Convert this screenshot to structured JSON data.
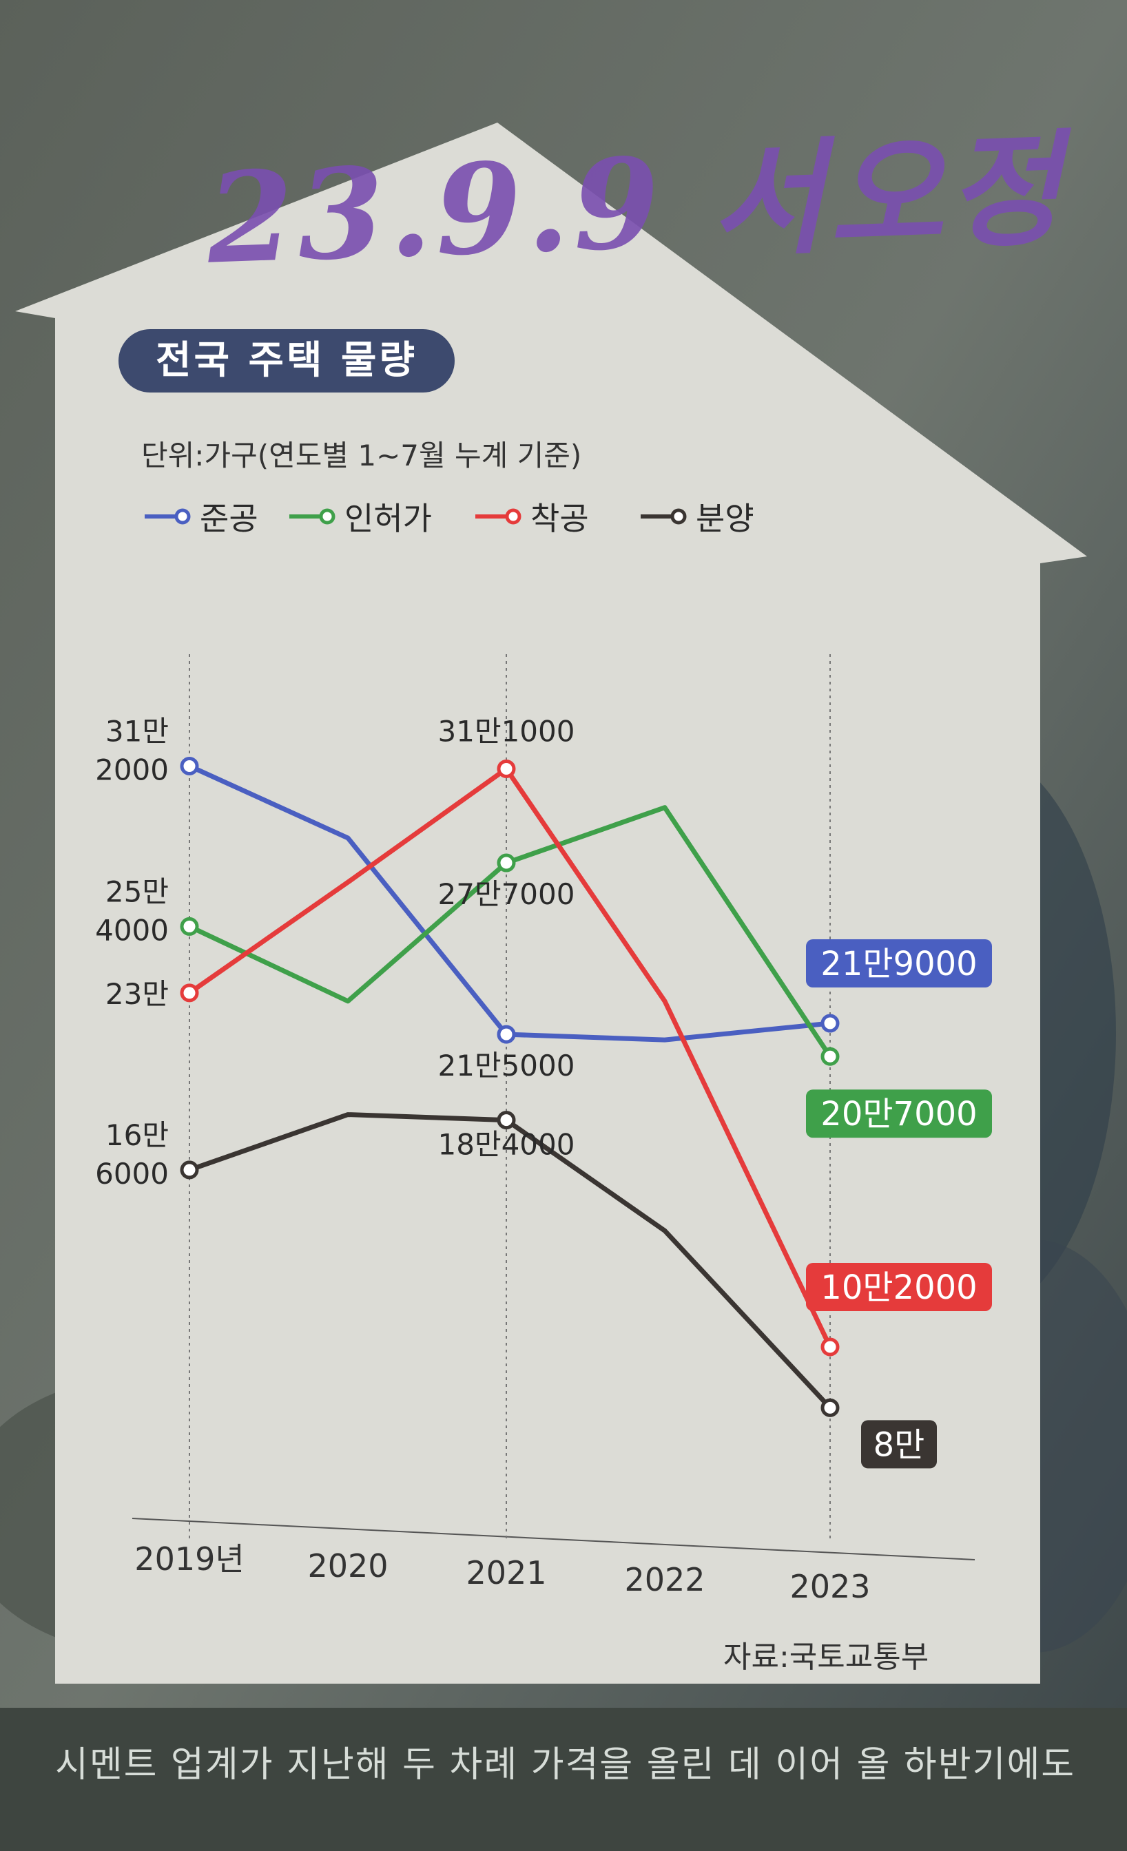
{
  "title": "전국 주택 물량",
  "unit": "단위:가구(연도별 1~7월 누계 기준)",
  "source": "자료:국토교통부",
  "handwritten_note": "23.9.9 서오정",
  "caption": "시멘트 업계가 지난해 두 차례 가격을 올린 데 이어 올 하반기에도",
  "legend": [
    {
      "name": "준공",
      "color": "#4a5fc1"
    },
    {
      "name": "인허가",
      "color": "#3fa04a"
    },
    {
      "name": "착공",
      "color": "#e53b3b"
    },
    {
      "name": "분양",
      "color": "#3a3532"
    }
  ],
  "chart_data": {
    "type": "line",
    "x": [
      "2019년",
      "2020",
      "2021",
      "2022",
      "2023"
    ],
    "series": [
      {
        "name": "준공",
        "color": "#4a5fc1",
        "values": [
          312000,
          286000,
          215000,
          213000,
          219000
        ]
      },
      {
        "name": "인허가",
        "color": "#3fa04a",
        "values": [
          254000,
          227000,
          277000,
          297000,
          207000
        ]
      },
      {
        "name": "착공",
        "color": "#e53b3b",
        "values": [
          230000,
          270000,
          311000,
          227000,
          102000
        ]
      },
      {
        "name": "분양",
        "color": "#3a3532",
        "values": [
          166000,
          186000,
          184000,
          144000,
          80000
        ]
      }
    ],
    "ylim": [
      40000,
      340000
    ],
    "labels": [
      {
        "text": "31만\n2000",
        "series": 0,
        "i": 0
      },
      {
        "text": "25만\n4000",
        "series": 1,
        "i": 0
      },
      {
        "text": "23만",
        "series": 2,
        "i": 0
      },
      {
        "text": "16만\n6000",
        "series": 3,
        "i": 0
      },
      {
        "text": "31만1000",
        "series": 2,
        "i": 2
      },
      {
        "text": "27만7000",
        "series": 1,
        "i": 2
      },
      {
        "text": "21만5000",
        "series": 0,
        "i": 2
      },
      {
        "text": "18만4000",
        "series": 3,
        "i": 2
      },
      {
        "text": "21만9000",
        "series": 0,
        "i": 4
      },
      {
        "text": "20만7000",
        "series": 1,
        "i": 4
      },
      {
        "text": "10만2000",
        "series": 2,
        "i": 4
      },
      {
        "text": "8만",
        "series": 3,
        "i": 4
      }
    ]
  }
}
